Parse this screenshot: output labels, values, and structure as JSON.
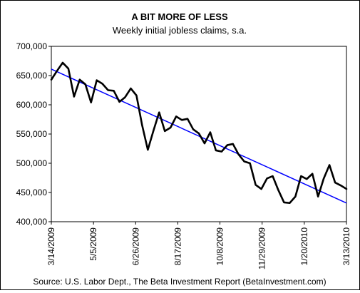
{
  "chart_data": {
    "type": "line",
    "title": "A BIT MORE OF LESS",
    "subtitle": "Weekly initial jobless claims, s.a.",
    "source": "Source: U.S. Labor Dept., The Beta Investment Report (BetaInvestment.com)",
    "xlabel": "",
    "ylabel": "",
    "ylim": [
      400000,
      700000
    ],
    "y_ticks": [
      400000,
      450000,
      500000,
      550000,
      600000,
      650000,
      700000
    ],
    "y_tick_labels": [
      "400,000",
      "450,000",
      "500,000",
      "550,000",
      "600,000",
      "650,000",
      "700,000"
    ],
    "x_tick_labels": [
      "3/14/2009",
      "5/5/2009",
      "6/26/2009",
      "8/17/2009",
      "10/8/2009",
      "11/29/2009",
      "1/20/2010",
      "3/13/2010"
    ],
    "x_tick_week_index": [
      0,
      7.43,
      14.86,
      22.29,
      29.71,
      37.14,
      44.57,
      52
    ],
    "legend": "none",
    "grid": "none",
    "colors": {
      "claims": "#000000",
      "trend": "#0000ff"
    },
    "series": [
      {
        "values": [
          643000,
          658000,
          672000,
          662000,
          614000,
          643000,
          635000,
          604000,
          642000,
          636000,
          625000,
          624000,
          605000,
          613000,
          628000,
          616000,
          565000,
          523000,
          556000,
          587000,
          555000,
          561000,
          580000,
          574000,
          576000,
          558000,
          551000,
          534000,
          553000,
          522000,
          520000,
          531000,
          533000,
          515000,
          503000,
          500000,
          463000,
          456000,
          474000,
          478000,
          454000,
          433000,
          432000,
          443000,
          478000,
          473000,
          482000,
          443000,
          474000,
          497000,
          467000,
          462000,
          456000
        ]
      },
      {
        "values": [
          661000,
          432000
        ]
      }
    ]
  }
}
